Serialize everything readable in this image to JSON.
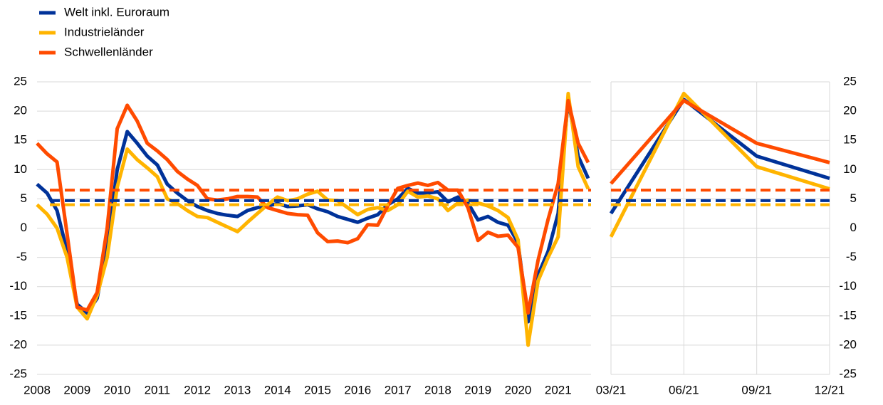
{
  "chart_data": [
    {
      "type": "line",
      "legend": "top-left",
      "categories": [
        "2008",
        null,
        null,
        null,
        "2009",
        null,
        null,
        null,
        "2010",
        null,
        null,
        null,
        "2011",
        null,
        null,
        null,
        "2012",
        null,
        null,
        null,
        "2013",
        null,
        null,
        null,
        "2014",
        null,
        null,
        null,
        "2015",
        null,
        null,
        null,
        "2016",
        null,
        null,
        null,
        "2017",
        null,
        null,
        null,
        "2018",
        null,
        null,
        null,
        "2019",
        null,
        null,
        null,
        "2020",
        null,
        null,
        null,
        "2021",
        null,
        null,
        null
      ],
      "ylim": [
        -25,
        25
      ],
      "yticks": [
        -25,
        -20,
        -15,
        -10,
        -5,
        0,
        5,
        10,
        15,
        20,
        25
      ],
      "grid": true,
      "series": [
        {
          "name": "Welt inkl. Euroraum",
          "color": "#003299",
          "average": 4.7,
          "values": [
            7.5,
            6,
            3,
            -4,
            -13,
            -14.5,
            -12,
            -3,
            10,
            16.5,
            14.5,
            12.3,
            10.8,
            7.5,
            6,
            4.7,
            3.7,
            3,
            2.5,
            2.2,
            2,
            3,
            3.5,
            3.8,
            4.2,
            3.7,
            3.8,
            4,
            3.3,
            2.8,
            2,
            1.5,
            1,
            1.7,
            2.3,
            4,
            5,
            6.8,
            6,
            6,
            6.2,
            4.5,
            5.3,
            4.3,
            1.4,
            2,
            1,
            0.5,
            -2.5,
            -16,
            -8,
            -4,
            2.5,
            22,
            12.3,
            8.5
          ]
        },
        {
          "name": "Industrieländer",
          "color": "#ffb400",
          "average": 4.0,
          "values": [
            4,
            2.4,
            0,
            -5,
            -13.5,
            -15.5,
            -11.5,
            -5,
            7,
            13.5,
            11.7,
            10.3,
            8.8,
            5,
            4.2,
            3,
            2,
            1.8,
            1,
            0.2,
            -0.6,
            1,
            2.5,
            4,
            5.3,
            4.7,
            5,
            5.8,
            6.3,
            4.8,
            4.7,
            3.5,
            2.3,
            3.2,
            3.5,
            3,
            4,
            6.3,
            5.3,
            5.5,
            5,
            3,
            4.3,
            4.8,
            4.3,
            3.8,
            3,
            1.8,
            -2,
            -20,
            -9,
            -5,
            -1.5,
            23,
            10.5,
            6.7
          ]
        },
        {
          "name": "Schwellenländer",
          "color": "#ff4b00",
          "average": 6.5,
          "values": [
            14.5,
            12.7,
            11.3,
            -1,
            -13.5,
            -14,
            -11,
            0,
            17,
            21,
            18.3,
            14.5,
            13.2,
            11.7,
            9.7,
            8.4,
            7.3,
            5,
            4.8,
            5,
            5.4,
            5.4,
            5.3,
            3.5,
            3,
            2.5,
            2.3,
            2.2,
            -0.8,
            -2.3,
            -2.2,
            -2.5,
            -1.8,
            0.6,
            0.5,
            3.8,
            6.8,
            7.3,
            7.7,
            7.3,
            7.8,
            6.5,
            6.5,
            3.5,
            -2.1,
            -0.7,
            -1.4,
            -1.2,
            -3.3,
            -14.5,
            -5.5,
            1.5,
            7.6,
            21.8,
            14.5,
            11.2
          ]
        }
      ]
    },
    {
      "type": "line",
      "categories": [
        "03/21",
        "06/21",
        "09/21",
        "12/21"
      ],
      "ylim": [
        -25,
        25
      ],
      "yticks": [
        -25,
        -20,
        -15,
        -10,
        -5,
        0,
        5,
        10,
        15,
        20,
        25
      ],
      "grid": true,
      "series": [
        {
          "color": "#003299",
          "average": 4.7,
          "values": [
            2.5,
            22,
            12.3,
            8.5
          ]
        },
        {
          "color": "#ffb400",
          "average": 4.0,
          "values": [
            -1.5,
            23,
            10.5,
            6.7
          ]
        },
        {
          "color": "#ff4b00",
          "average": 6.5,
          "values": [
            7.6,
            21.8,
            14.5,
            11.2
          ]
        }
      ]
    }
  ]
}
